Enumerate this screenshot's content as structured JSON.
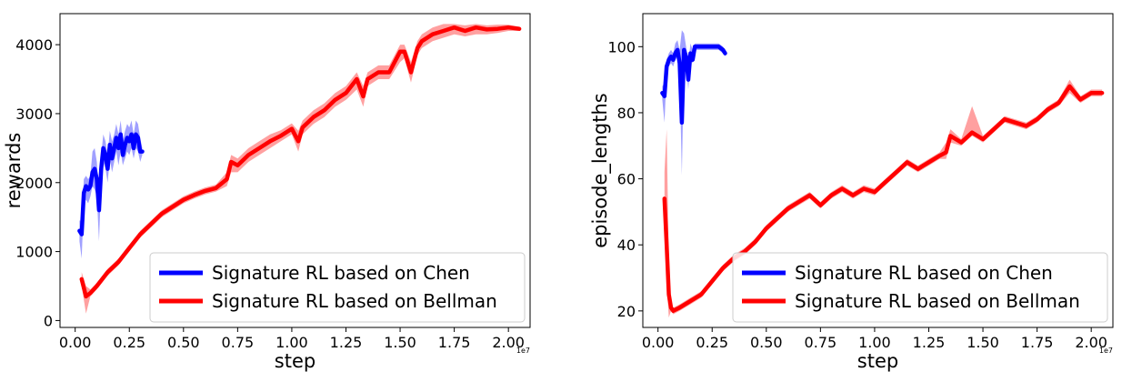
{
  "chart_data": [
    {
      "type": "line",
      "xlabel": "step",
      "ylabel": "rewards",
      "x_offset_label": "1e7",
      "xlim": [
        -0.07,
        2.1
      ],
      "ylim": [
        -100,
        4450
      ],
      "xticks": [
        0.0,
        0.25,
        0.5,
        0.75,
        1.0,
        1.25,
        1.5,
        1.75,
        2.0
      ],
      "xtick_labels": [
        "0.00",
        "0.25",
        "0.50",
        "0.75",
        "1.00",
        "1.25",
        "1.50",
        "1.75",
        "2.00"
      ],
      "yticks": [
        0,
        1000,
        2000,
        3000,
        4000
      ],
      "ytick_labels": [
        "0",
        "1000",
        "2000",
        "3000",
        "4000"
      ],
      "grid": false,
      "legend_position": "lower-right",
      "series": [
        {
          "name": "Signature RL based on Chen",
          "color": "#0000ff",
          "band_color": "#8080ff",
          "x": [
            0.02,
            0.03,
            0.04,
            0.05,
            0.06,
            0.07,
            0.08,
            0.09,
            0.1,
            0.11,
            0.12,
            0.13,
            0.14,
            0.15,
            0.16,
            0.17,
            0.18,
            0.19,
            0.2,
            0.21,
            0.22,
            0.23,
            0.24,
            0.25,
            0.26,
            0.27,
            0.28,
            0.29,
            0.3,
            0.31
          ],
          "y": [
            1300,
            1250,
            1850,
            1950,
            1900,
            1950,
            2150,
            2200,
            2050,
            1600,
            2200,
            2500,
            2400,
            2200,
            2550,
            2350,
            2500,
            2650,
            2500,
            2700,
            2400,
            2550,
            2650,
            2600,
            2700,
            2500,
            2700,
            2650,
            2450,
            2450
          ],
          "lower": [
            1150,
            900,
            1700,
            1750,
            1700,
            1800,
            1950,
            1900,
            1800,
            1150,
            2000,
            2300,
            2200,
            2000,
            2350,
            2150,
            2300,
            2450,
            2250,
            2450,
            2250,
            2350,
            2450,
            2400,
            2500,
            2350,
            2500,
            2450,
            2300,
            2400
          ],
          "upper": [
            1450,
            1450,
            2050,
            2100,
            2050,
            2100,
            2450,
            2500,
            2300,
            1800,
            2400,
            2700,
            2600,
            2400,
            2750,
            2600,
            2700,
            2850,
            2700,
            2900,
            2600,
            2750,
            2850,
            2800,
            2900,
            2700,
            2900,
            2850,
            2650,
            2500
          ]
        },
        {
          "name": "Signature RL based on Bellman",
          "color": "#ff0000",
          "band_color": "#ff8080",
          "x": [
            0.03,
            0.05,
            0.07,
            0.1,
            0.15,
            0.2,
            0.25,
            0.3,
            0.35,
            0.4,
            0.45,
            0.5,
            0.55,
            0.6,
            0.65,
            0.7,
            0.72,
            0.75,
            0.8,
            0.85,
            0.9,
            0.95,
            1.0,
            1.03,
            1.05,
            1.1,
            1.15,
            1.2,
            1.25,
            1.3,
            1.33,
            1.35,
            1.4,
            1.45,
            1.5,
            1.52,
            1.55,
            1.58,
            1.6,
            1.65,
            1.7,
            1.75,
            1.8,
            1.85,
            1.9,
            1.95,
            2.0,
            2.05
          ],
          "y": [
            600,
            350,
            400,
            500,
            700,
            850,
            1050,
            1250,
            1400,
            1550,
            1650,
            1750,
            1820,
            1880,
            1920,
            2050,
            2300,
            2250,
            2400,
            2500,
            2600,
            2680,
            2780,
            2600,
            2800,
            2950,
            3050,
            3200,
            3300,
            3500,
            3250,
            3500,
            3600,
            3600,
            3900,
            3900,
            3600,
            3950,
            4050,
            4150,
            4200,
            4250,
            4200,
            4250,
            4220,
            4230,
            4250,
            4230
          ],
          "lower": [
            500,
            100,
            350,
            450,
            650,
            800,
            1000,
            1200,
            1350,
            1500,
            1600,
            1700,
            1770,
            1830,
            1870,
            1950,
            2150,
            2150,
            2300,
            2400,
            2500,
            2600,
            2700,
            2450,
            2700,
            2850,
            2950,
            3100,
            3200,
            3350,
            3100,
            3400,
            3500,
            3500,
            3750,
            3800,
            3450,
            3850,
            3950,
            4050,
            4100,
            4150,
            4120,
            4150,
            4150,
            4170,
            4200,
            4200
          ],
          "upper": [
            700,
            500,
            450,
            550,
            750,
            900,
            1100,
            1300,
            1450,
            1600,
            1700,
            1800,
            1870,
            1930,
            1970,
            2150,
            2400,
            2350,
            2500,
            2600,
            2700,
            2760,
            2860,
            2750,
            2900,
            3050,
            3150,
            3300,
            3400,
            3600,
            3400,
            3600,
            3700,
            3700,
            4000,
            4000,
            3750,
            4050,
            4150,
            4250,
            4300,
            4300,
            4280,
            4300,
            4280,
            4290,
            4290,
            4260
          ]
        }
      ]
    },
    {
      "type": "line",
      "xlabel": "step",
      "ylabel": "episode_lengths",
      "x_offset_label": "1e7",
      "xlim": [
        -0.07,
        2.1
      ],
      "ylim": [
        15,
        110
      ],
      "xticks": [
        0.0,
        0.25,
        0.5,
        0.75,
        1.0,
        1.25,
        1.5,
        1.75,
        2.0
      ],
      "xtick_labels": [
        "0.00",
        "0.25",
        "0.50",
        "0.75",
        "1.00",
        "1.25",
        "1.50",
        "1.75",
        "2.00"
      ],
      "yticks": [
        20,
        40,
        60,
        80,
        100
      ],
      "ytick_labels": [
        "20",
        "40",
        "60",
        "80",
        "100"
      ],
      "grid": false,
      "legend_position": "lower-right",
      "series": [
        {
          "name": "Signature RL based on Chen",
          "color": "#0000ff",
          "band_color": "#8080ff",
          "x": [
            0.02,
            0.03,
            0.04,
            0.05,
            0.06,
            0.07,
            0.08,
            0.09,
            0.1,
            0.11,
            0.12,
            0.13,
            0.14,
            0.15,
            0.16,
            0.17,
            0.18,
            0.2,
            0.22,
            0.24,
            0.26,
            0.28,
            0.3,
            0.31
          ],
          "y": [
            86,
            85,
            94,
            96,
            97,
            96,
            98,
            99,
            95,
            77,
            99,
            97,
            90,
            98,
            96,
            100,
            100,
            100,
            100,
            100,
            100,
            100,
            99,
            98
          ],
          "lower": [
            84,
            77,
            92,
            94,
            95,
            94,
            96,
            97,
            92,
            61,
            96,
            95,
            87,
            96,
            95,
            99,
            99,
            99,
            99,
            99,
            99,
            99,
            98,
            97
          ],
          "upper": [
            88,
            89,
            96,
            98,
            99,
            98,
            101,
            102,
            99,
            105,
            104,
            100,
            95,
            101,
            99,
            101,
            101,
            101,
            101,
            101,
            101,
            101,
            100,
            99
          ]
        },
        {
          "name": "Signature RL based on Bellman",
          "color": "#ff0000",
          "band_color": "#ff8080",
          "x": [
            0.03,
            0.04,
            0.05,
            0.06,
            0.07,
            0.1,
            0.15,
            0.2,
            0.25,
            0.3,
            0.35,
            0.4,
            0.45,
            0.5,
            0.55,
            0.6,
            0.65,
            0.7,
            0.75,
            0.8,
            0.85,
            0.9,
            0.95,
            1.0,
            1.05,
            1.1,
            1.15,
            1.2,
            1.25,
            1.3,
            1.33,
            1.35,
            1.4,
            1.45,
            1.5,
            1.55,
            1.6,
            1.65,
            1.7,
            1.75,
            1.8,
            1.85,
            1.9,
            1.95,
            2.0,
            2.05
          ],
          "y": [
            54,
            40,
            25,
            21,
            20,
            21,
            23,
            25,
            29,
            33,
            36,
            38,
            41,
            45,
            48,
            51,
            53,
            55,
            52,
            55,
            57,
            55,
            57,
            56,
            59,
            62,
            65,
            63,
            65,
            67,
            68,
            73,
            71,
            74,
            72,
            75,
            78,
            77,
            76,
            78,
            81,
            83,
            88,
            84,
            86,
            86
          ],
          "lower": [
            45,
            28,
            18,
            20,
            19,
            20,
            22,
            24,
            28,
            32,
            35,
            37,
            40,
            44,
            47,
            50,
            52,
            54,
            51,
            54,
            56,
            54,
            56,
            55,
            58,
            61,
            64,
            62,
            64,
            66,
            66,
            71,
            70,
            73,
            71,
            74,
            77,
            76,
            75,
            77,
            80,
            82,
            86,
            83,
            85,
            85
          ],
          "upper": [
            62,
            75,
            35,
            23,
            21,
            22,
            24,
            26,
            30,
            34,
            37,
            39,
            42,
            46,
            49,
            52,
            54,
            56,
            53,
            56,
            58,
            56,
            58,
            57,
            60,
            63,
            66,
            64,
            66,
            68,
            71,
            75,
            72,
            82,
            73,
            76,
            79,
            78,
            77,
            79,
            82,
            84,
            90,
            85,
            87,
            87
          ]
        }
      ]
    }
  ]
}
